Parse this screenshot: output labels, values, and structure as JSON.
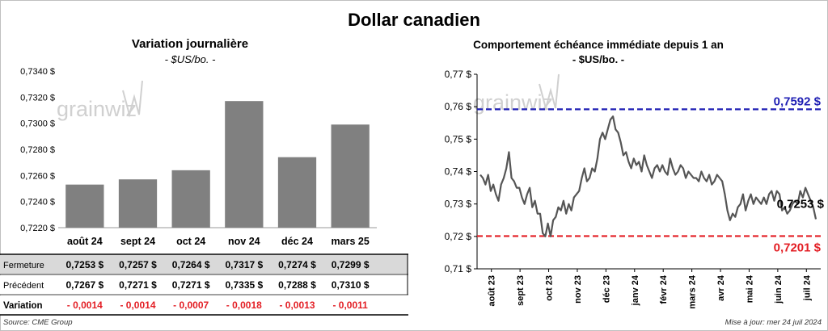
{
  "title": "Dollar canadien",
  "left": {
    "title": "Variation  journalière",
    "subtitle": "- $US/bo. -",
    "row_labels": {
      "close": "Fermeture",
      "previous": "Précédent",
      "change": "Variation"
    }
  },
  "right": {
    "title": "Comportement échéance immédiate depuis 1 an",
    "subtitle": "- $US/bo. -"
  },
  "watermark": "grainwiz",
  "footer": {
    "source": "Source: CME Group",
    "updated": "Mise à jour: mer 24 juil 2024"
  },
  "chart_data": [
    {
      "type": "bar",
      "title": "Variation  journalière",
      "categories": [
        "août 24",
        "sept 24",
        "oct 24",
        "nov 24",
        "déc 24",
        "mars 25"
      ],
      "values": [
        0.7253,
        0.7257,
        0.7264,
        0.7317,
        0.7274,
        0.7299
      ],
      "close_labels": [
        "0,7253 $",
        "0,7257 $",
        "0,7264 $",
        "0,7317 $",
        "0,7274 $",
        "0,7299 $"
      ],
      "previous_labels": [
        "0,7267 $",
        "0,7271 $",
        "0,7271 $",
        "0,7335 $",
        "0,7288 $",
        "0,7310 $"
      ],
      "change_labels": [
        "- 0,0014",
        "- 0,0014",
        "- 0,0007",
        "- 0,0018",
        "- 0,0013",
        "- 0,0011"
      ],
      "ylim": [
        0.722,
        0.734
      ],
      "yticks": [
        0.722,
        0.724,
        0.726,
        0.728,
        0.73,
        0.732,
        0.734
      ],
      "ytick_labels": [
        "0,7220 $",
        "0,7240 $",
        "0,7260 $",
        "0,7280 $",
        "0,7300 $",
        "0,7320 $",
        "0,7340 $"
      ],
      "grid": false,
      "bar_color": "#808080"
    },
    {
      "type": "line",
      "title": "Comportement échéance immédiate depuis 1 an",
      "x_labels": [
        "août 23",
        "sept 23",
        "oct 23",
        "nov 23",
        "déc 23",
        "janv 24",
        "févr 24",
        "mars 24",
        "avr 24",
        "mai 24",
        "juin 24",
        "juil 24"
      ],
      "ylim": [
        0.71,
        0.77
      ],
      "yticks": [
        0.71,
        0.72,
        0.73,
        0.74,
        0.75,
        0.76,
        0.77
      ],
      "ytick_labels": [
        "0,71 $",
        "0,72 $",
        "0,73 $",
        "0,74 $",
        "0,75 $",
        "0,76 $",
        "0,77 $"
      ],
      "values": [
        0.739,
        0.738,
        0.736,
        0.739,
        0.734,
        0.736,
        0.733,
        0.731,
        0.736,
        0.738,
        0.741,
        0.746,
        0.738,
        0.737,
        0.735,
        0.735,
        0.732,
        0.73,
        0.733,
        0.735,
        0.729,
        0.731,
        0.727,
        0.727,
        0.721,
        0.72,
        0.724,
        0.72,
        0.725,
        0.726,
        0.729,
        0.728,
        0.731,
        0.727,
        0.73,
        0.728,
        0.732,
        0.733,
        0.734,
        0.738,
        0.741,
        0.737,
        0.738,
        0.741,
        0.74,
        0.744,
        0.75,
        0.752,
        0.75,
        0.753,
        0.756,
        0.757,
        0.753,
        0.752,
        0.749,
        0.745,
        0.746,
        0.743,
        0.741,
        0.744,
        0.742,
        0.743,
        0.74,
        0.745,
        0.742,
        0.74,
        0.738,
        0.741,
        0.742,
        0.74,
        0.742,
        0.74,
        0.739,
        0.744,
        0.741,
        0.739,
        0.74,
        0.742,
        0.741,
        0.738,
        0.74,
        0.739,
        0.738,
        0.738,
        0.737,
        0.74,
        0.738,
        0.737,
        0.739,
        0.736,
        0.737,
        0.739,
        0.738,
        0.737,
        0.733,
        0.728,
        0.725,
        0.727,
        0.726,
        0.729,
        0.73,
        0.733,
        0.728,
        0.731,
        0.733,
        0.73,
        0.732,
        0.731,
        0.73,
        0.732,
        0.73,
        0.733,
        0.734,
        0.731,
        0.734,
        0.733,
        0.728,
        0.729,
        0.727,
        0.728,
        0.73,
        0.731,
        0.73,
        0.734,
        0.732,
        0.735,
        0.733,
        0.731,
        0.729,
        0.7253
      ],
      "reference_lines": [
        {
          "value": 0.7592,
          "label": "0,7592 $",
          "color": "#1f1fb4"
        },
        {
          "value": 0.7201,
          "label": "0,7201 $",
          "color": "#e31e24"
        }
      ],
      "last_label": "0,7253 $",
      "line_color": "#555555"
    }
  ]
}
